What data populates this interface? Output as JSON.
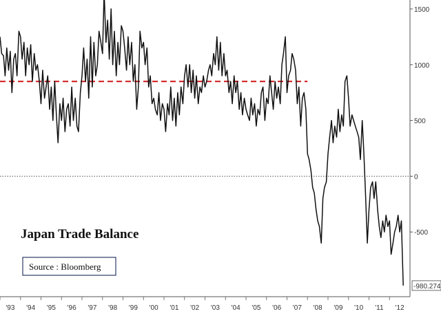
{
  "chart_data": {
    "type": "line",
    "title": "Japan Trade Balance",
    "source_note": "Source : Bloomberg",
    "xlabel": "",
    "ylabel": "",
    "x_tick_labels": [
      "'93",
      "'94",
      "'95",
      "'96",
      "'97",
      "'98",
      "'99",
      "'00",
      "'01",
      "'02",
      "'03",
      "'04",
      "'05",
      "'06",
      "'07",
      "'08",
      "'09",
      "'10",
      "'11",
      "'12"
    ],
    "y_ticks": [
      1500,
      1000,
      500,
      0,
      -500
    ],
    "ylim": [
      -1080,
      1580
    ],
    "xlim": [
      1993.0,
      2013.0
    ],
    "reference_lines": [
      {
        "y": 850,
        "style": "dashed",
        "color": "#d32f2f"
      },
      {
        "y": 0,
        "style": "dotted",
        "color": "#555555"
      }
    ],
    "last_value_label": "-980.274",
    "series": [
      {
        "color": "#111111",
        "x": [
          1993.0,
          1993.08,
          1993.17,
          1993.25,
          1993.33,
          1993.42,
          1993.5,
          1993.58,
          1993.67,
          1993.75,
          1993.83,
          1993.92,
          1994.0,
          1994.08,
          1994.17,
          1994.25,
          1994.33,
          1994.42,
          1994.5,
          1994.58,
          1994.67,
          1994.75,
          1994.83,
          1994.92,
          1995.0,
          1995.08,
          1995.17,
          1995.25,
          1995.33,
          1995.42,
          1995.5,
          1995.58,
          1995.67,
          1995.75,
          1995.83,
          1995.92,
          1996.0,
          1996.08,
          1996.17,
          1996.25,
          1996.33,
          1996.42,
          1996.5,
          1996.58,
          1996.67,
          1996.75,
          1996.83,
          1996.92,
          1997.0,
          1997.08,
          1997.17,
          1997.25,
          1997.33,
          1997.42,
          1997.5,
          1997.58,
          1997.67,
          1997.75,
          1997.83,
          1997.92,
          1998.0,
          1998.08,
          1998.17,
          1998.25,
          1998.33,
          1998.42,
          1998.5,
          1998.58,
          1998.67,
          1998.75,
          1998.83,
          1998.92,
          1999.0,
          1999.08,
          1999.17,
          1999.25,
          1999.33,
          1999.42,
          1999.5,
          1999.58,
          1999.67,
          1999.75,
          1999.83,
          1999.92,
          2000.0,
          2000.08,
          2000.17,
          2000.25,
          2000.33,
          2000.42,
          2000.5,
          2000.58,
          2000.67,
          2000.75,
          2000.83,
          2000.92,
          2001.0,
          2001.08,
          2001.17,
          2001.25,
          2001.33,
          2001.42,
          2001.5,
          2001.58,
          2001.67,
          2001.75,
          2001.83,
          2001.92,
          2002.0,
          2002.08,
          2002.17,
          2002.25,
          2002.33,
          2002.42,
          2002.5,
          2002.58,
          2002.67,
          2002.75,
          2002.83,
          2002.92,
          2003.0,
          2003.08,
          2003.17,
          2003.25,
          2003.33,
          2003.42,
          2003.5,
          2003.58,
          2003.67,
          2003.75,
          2003.83,
          2003.92,
          2004.0,
          2004.08,
          2004.17,
          2004.25,
          2004.33,
          2004.42,
          2004.5,
          2004.58,
          2004.67,
          2004.75,
          2004.83,
          2004.92,
          2005.0,
          2005.08,
          2005.17,
          2005.25,
          2005.33,
          2005.42,
          2005.5,
          2005.58,
          2005.67,
          2005.75,
          2005.83,
          2005.92,
          2006.0,
          2006.08,
          2006.17,
          2006.25,
          2006.33,
          2006.42,
          2006.5,
          2006.58,
          2006.67,
          2006.75,
          2006.83,
          2006.92,
          2007.0,
          2007.08,
          2007.17,
          2007.25,
          2007.33,
          2007.42,
          2007.5,
          2007.58,
          2007.67,
          2007.75,
          2007.83,
          2007.92,
          2008.0,
          2008.08,
          2008.17,
          2008.25,
          2008.33,
          2008.42,
          2008.5,
          2008.58,
          2008.67,
          2008.75,
          2008.83,
          2008.92,
          2009.0,
          2009.08,
          2009.17,
          2009.25,
          2009.33,
          2009.42,
          2009.5,
          2009.58,
          2009.67,
          2009.75,
          2009.83,
          2009.92,
          2010.0,
          2010.08,
          2010.17,
          2010.25,
          2010.33,
          2010.42,
          2010.5,
          2010.58,
          2010.67,
          2010.75,
          2010.83,
          2010.92,
          2011.0,
          2011.08,
          2011.17,
          2011.25,
          2011.33,
          2011.42,
          2011.5,
          2011.58,
          2011.67,
          2011.75,
          2011.83,
          2011.92,
          2012.0,
          2012.08,
          2012.17,
          2012.25,
          2012.33,
          2012.42,
          2012.5,
          2012.58,
          2012.67
        ],
        "values": [
          1250,
          1100,
          1080,
          900,
          1150,
          950,
          1120,
          750,
          1050,
          1100,
          900,
          1300,
          1250,
          1050,
          1200,
          900,
          1150,
          1000,
          1180,
          850,
          1100,
          950,
          1000,
          850,
          650,
          950,
          700,
          800,
          900,
          600,
          800,
          500,
          850,
          550,
          300,
          650,
          500,
          700,
          400,
          600,
          650,
          450,
          800,
          500,
          700,
          450,
          400,
          750,
          900,
          1150,
          850,
          1050,
          700,
          1250,
          800,
          1200,
          900,
          1000,
          1300,
          1200,
          1100,
          1650,
          1200,
          1400,
          1050,
          1500,
          1000,
          1300,
          900,
          1200,
          1000,
          1350,
          1300,
          1150,
          950,
          1250,
          1000,
          1200,
          850,
          1000,
          600,
          800,
          1300,
          1150,
          1200,
          1000,
          1150,
          800,
          900,
          650,
          700,
          600,
          550,
          750,
          500,
          650,
          600,
          400,
          650,
          550,
          800,
          500,
          700,
          450,
          750,
          550,
          800,
          650,
          900,
          1000,
          800,
          1000,
          750,
          950,
          700,
          900,
          650,
          800,
          750,
          900,
          800,
          850,
          950,
          1000,
          900,
          1100,
          1000,
          1250,
          950,
          1200,
          900,
          1100,
          900,
          950,
          750,
          850,
          650,
          900,
          750,
          850,
          600,
          750,
          550,
          700,
          600,
          550,
          500,
          700,
          550,
          650,
          450,
          600,
          550,
          750,
          800,
          500,
          700,
          650,
          900,
          750,
          600,
          850,
          700,
          800,
          650,
          1000,
          1100,
          1250,
          750,
          900,
          950,
          1100,
          1050,
          950,
          650,
          800,
          450,
          700,
          750,
          600,
          200,
          150,
          50,
          -100,
          -150,
          -300,
          -400,
          -450,
          -600,
          -200,
          -100,
          -50,
          200,
          350,
          500,
          300,
          450,
          350,
          600,
          400,
          550,
          450,
          850,
          900,
          700,
          450,
          550,
          500,
          450,
          400,
          350,
          150,
          500,
          200,
          -150,
          -600,
          -300,
          -100,
          -50,
          -200,
          -50,
          -300,
          -450,
          -550,
          -400,
          -500,
          -350,
          -450,
          -400,
          -700,
          -600,
          -500,
          -450,
          -350,
          -500,
          -400,
          -980.274
        ]
      }
    ]
  }
}
